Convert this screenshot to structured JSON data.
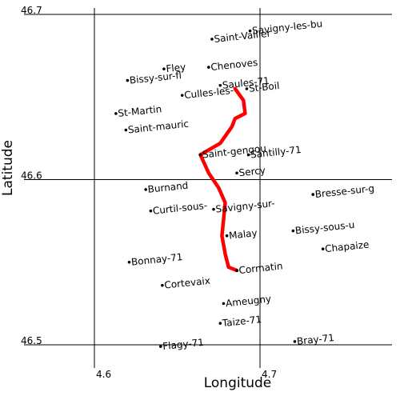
{
  "axes": {
    "xlabel": "Longitude",
    "ylabel": "Latitude",
    "xticks": [
      {
        "value": 4.6,
        "label": "4.6"
      },
      {
        "value": 4.7,
        "label": "4.7"
      }
    ],
    "yticks": [
      {
        "value": 46.7,
        "label": "46.7"
      },
      {
        "value": 46.6,
        "label": "46.6"
      },
      {
        "value": 46.5,
        "label": "46.5"
      }
    ]
  },
  "places": [
    {
      "name": "Saint-Vallier",
      "lon": 4.671,
      "lat": 46.685
    },
    {
      "name": "Savigny-les-bu",
      "lon": 4.694,
      "lat": 46.69
    },
    {
      "name": "Fley",
      "lon": 4.642,
      "lat": 46.667
    },
    {
      "name": "Chenoves",
      "lon": 4.669,
      "lat": 46.668
    },
    {
      "name": "Bissy-sur-fl",
      "lon": 4.62,
      "lat": 46.66
    },
    {
      "name": "Culles-les-",
      "lon": 4.653,
      "lat": 46.651
    },
    {
      "name": "Saules-71",
      "lon": 4.676,
      "lat": 46.657
    },
    {
      "name": "St-Boil",
      "lon": 4.692,
      "lat": 46.655
    },
    {
      "name": "St-Martin",
      "lon": 4.613,
      "lat": 46.64
    },
    {
      "name": "Saint-mauric",
      "lon": 4.619,
      "lat": 46.63
    },
    {
      "name": "Saint-gengou",
      "lon": 4.664,
      "lat": 46.615
    },
    {
      "name": "Santilly-71",
      "lon": 4.693,
      "lat": 46.615
    },
    {
      "name": "Sercy",
      "lon": 4.686,
      "lat": 46.604
    },
    {
      "name": "Burnand",
      "lon": 4.631,
      "lat": 46.594
    },
    {
      "name": "Bresse-sur-g",
      "lon": 4.732,
      "lat": 46.591
    },
    {
      "name": "Curtil-sous-",
      "lon": 4.634,
      "lat": 46.581
    },
    {
      "name": "Savigny-sur-",
      "lon": 4.672,
      "lat": 46.582
    },
    {
      "name": "Bissy-sous-u",
      "lon": 4.72,
      "lat": 46.569
    },
    {
      "name": "Malay",
      "lon": 4.68,
      "lat": 46.566
    },
    {
      "name": "Chapaize",
      "lon": 4.738,
      "lat": 46.558
    },
    {
      "name": "Bonnay-71",
      "lon": 4.621,
      "lat": 46.55
    },
    {
      "name": "Cormatin",
      "lon": 4.686,
      "lat": 46.545
    },
    {
      "name": "Cortevaix",
      "lon": 4.641,
      "lat": 46.536
    },
    {
      "name": "Ameugny",
      "lon": 4.678,
      "lat": 46.525
    },
    {
      "name": "Taize-71",
      "lon": 4.676,
      "lat": 46.513
    },
    {
      "name": "Bray-71",
      "lon": 4.721,
      "lat": 46.502
    },
    {
      "name": "Flagy-71",
      "lon": 4.64,
      "lat": 46.499
    }
  ],
  "route": [
    {
      "lon": 4.685,
      "lat": 46.655
    },
    {
      "lon": 4.69,
      "lat": 46.648
    },
    {
      "lon": 4.691,
      "lat": 46.64
    },
    {
      "lon": 4.685,
      "lat": 46.637
    },
    {
      "lon": 4.683,
      "lat": 46.632
    },
    {
      "lon": 4.676,
      "lat": 46.622
    },
    {
      "lon": 4.664,
      "lat": 46.615
    },
    {
      "lon": 4.669,
      "lat": 46.604
    },
    {
      "lon": 4.675,
      "lat": 46.595
    },
    {
      "lon": 4.679,
      "lat": 46.586
    },
    {
      "lon": 4.678,
      "lat": 46.576
    },
    {
      "lon": 4.677,
      "lat": 46.566
    },
    {
      "lon": 4.679,
      "lat": 46.555
    },
    {
      "lon": 4.681,
      "lat": 46.547
    },
    {
      "lon": 4.686,
      "lat": 46.545
    }
  ],
  "colors": {
    "route": "#ff0000",
    "grid": "#000000",
    "marker": "#000000"
  }
}
